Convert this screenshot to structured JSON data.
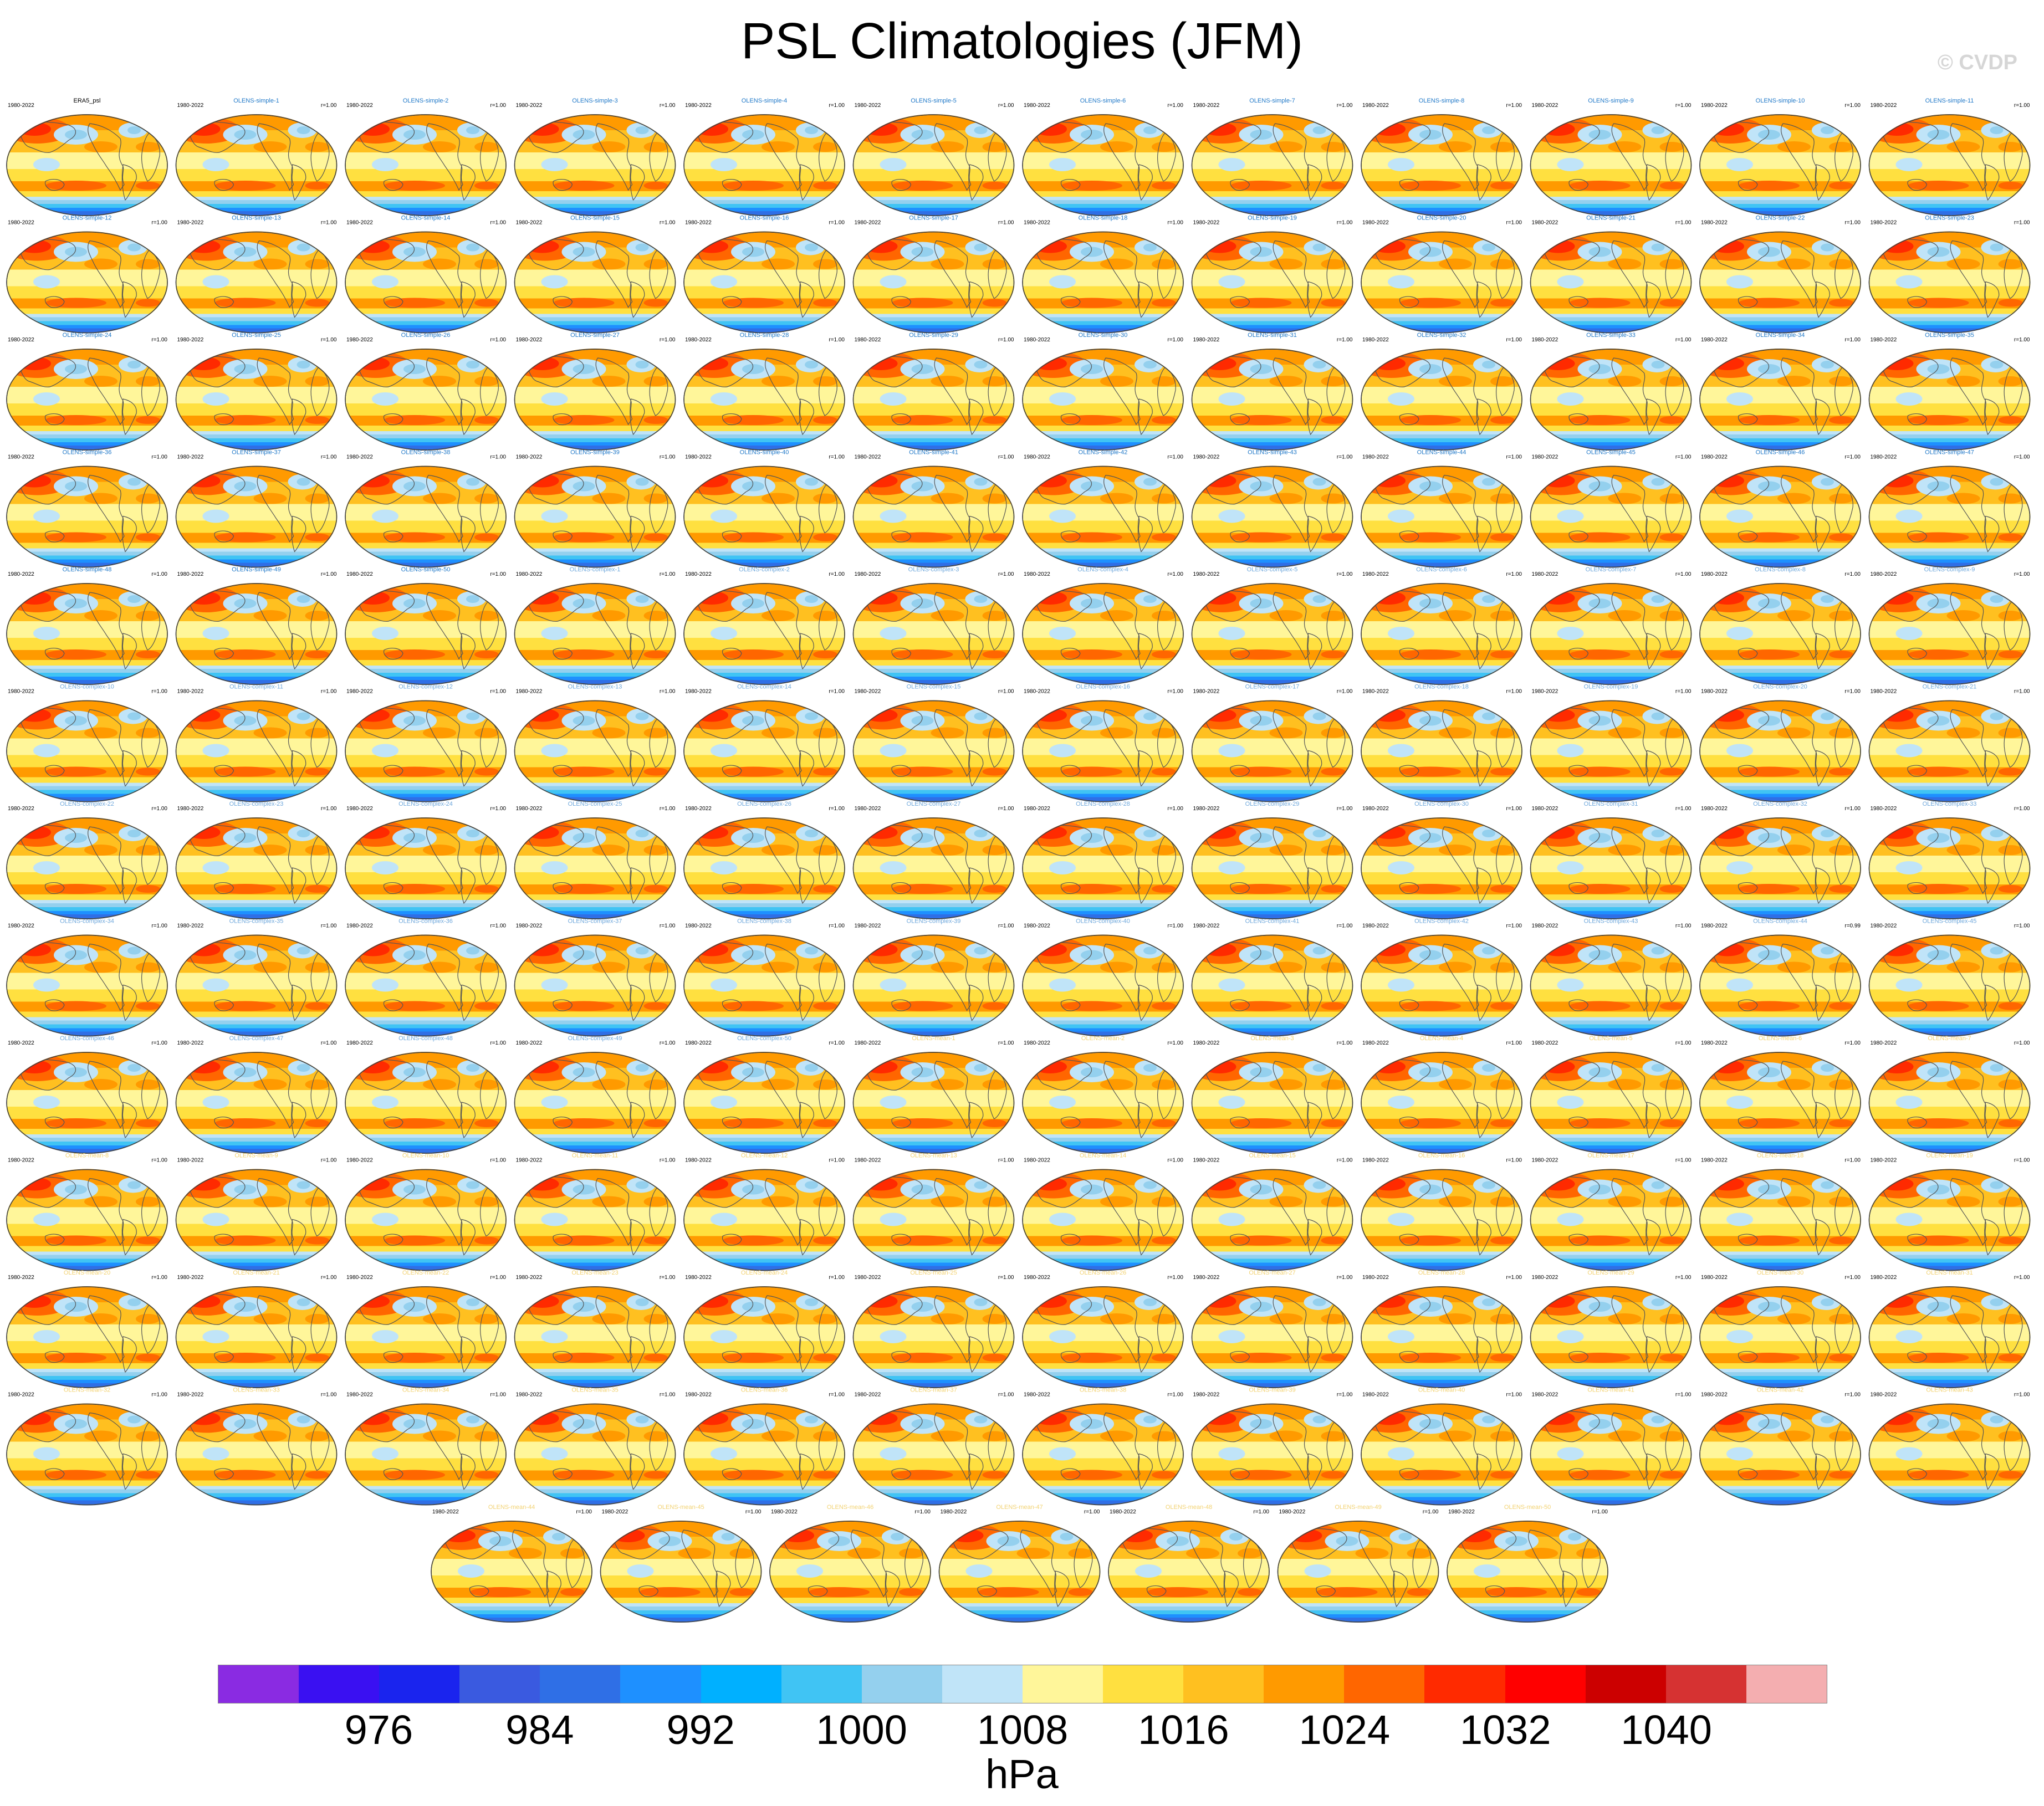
{
  "title": "PSL Climatologies (JFM)",
  "watermark": "© CVDP",
  "chart_data": {
    "type": "heatmap",
    "title": "PSL Climatologies (JFM)",
    "variable": "PSL",
    "season": "JFM",
    "projection": "global map, Robinson-like",
    "colorbar": {
      "units": "hPa",
      "levels": [
        972,
        976,
        980,
        984,
        988,
        992,
        996,
        1000,
        1004,
        1008,
        1012,
        1016,
        1020,
        1024,
        1028,
        1032,
        1036,
        1040,
        1044
      ],
      "tick_labels": [
        "976",
        "984",
        "992",
        "1000",
        "1008",
        "1016",
        "1024",
        "1032",
        "1040"
      ],
      "colors": [
        "#8a2be2",
        "#3a10f2",
        "#1a24ee",
        "#3a5ae0",
        "#2f6fe6",
        "#1e90ff",
        "#00b0ff",
        "#40c4f4",
        "#94d0ee",
        "#c0e4f8",
        "#fff69a",
        "#ffe040",
        "#ffc020",
        "#ff9a00",
        "#ff6600",
        "#ff2a00",
        "#ff0000",
        "#cc0000",
        "#d63232",
        "#f4aeb0"
      ]
    },
    "panel_period": "1980-2022",
    "observation": {
      "name": "ERA5_psl"
    },
    "ensembles": [
      {
        "prefix": "OLENS-simple",
        "members": 50,
        "title_color": "#1f78c8"
      },
      {
        "prefix": "OLENS-complex",
        "members": 50,
        "title_color": "#6fa8dc"
      },
      {
        "prefix": "OLENS-mean",
        "members": 50,
        "title_color": "#f2d272"
      }
    ],
    "panel_stat_default": "r=1.00",
    "panel_stat_exceptions": {
      "OLENS-complex 44": "r=0.99"
    },
    "grid": {
      "columns": 12,
      "full_rows": 12,
      "last_row_count": 7
    }
  }
}
